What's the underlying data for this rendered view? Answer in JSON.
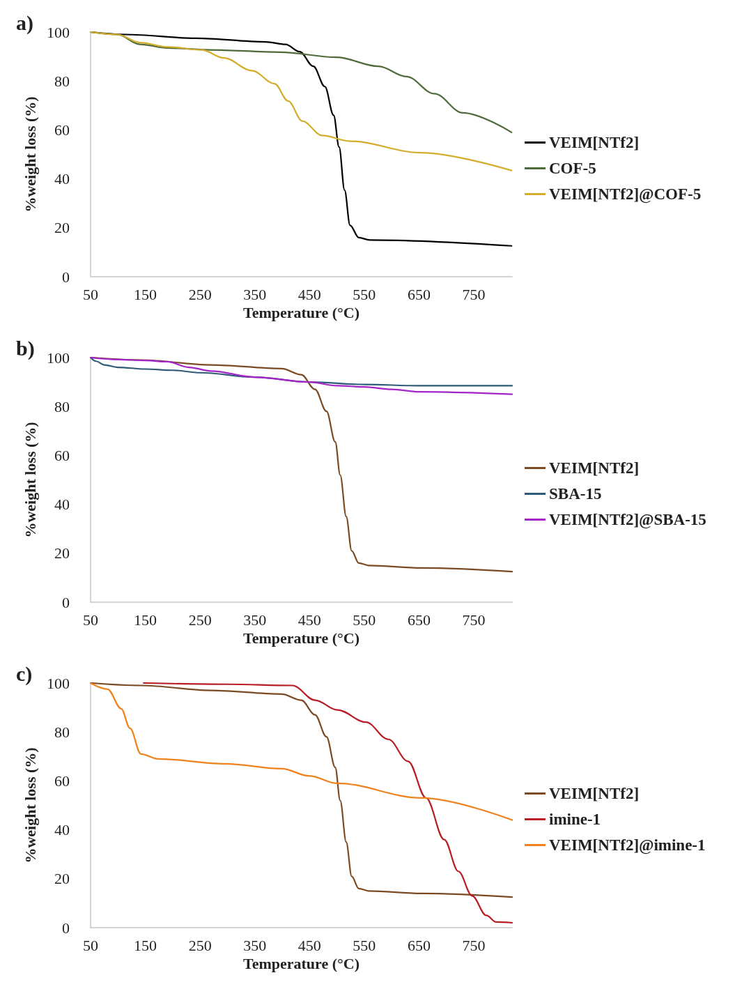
{
  "chart_data": [
    {
      "type": "line",
      "title": "a)",
      "xlabel": "Temperature (°C)",
      "ylabel": "%weight loss (%)",
      "xlim": [
        50,
        820
      ],
      "xticks": [
        50,
        150,
        250,
        350,
        450,
        550,
        650,
        750
      ],
      "ylim": [
        0,
        100
      ],
      "yticks": [
        0,
        20,
        40,
        60,
        80,
        100
      ],
      "legend": "right",
      "series": [
        {
          "name": "VEIM[NTf2]",
          "color": "#000000",
          "x": [
            50,
            114,
            242,
            370,
            406,
            432,
            457,
            478,
            494,
            504,
            514,
            524,
            540,
            560,
            819
          ],
          "values": [
            100,
            99,
            97.5,
            96,
            95,
            92,
            86,
            77.7,
            66,
            53,
            35.4,
            21,
            16,
            15,
            12.6
          ]
        },
        {
          "name": "COF-5",
          "color": "#4f6b3a",
          "x": [
            50,
            99,
            140,
            191,
            268,
            396,
            499,
            576,
            627,
            678,
            730,
            819
          ],
          "values": [
            100,
            99,
            95,
            93.5,
            92.7,
            91.8,
            89.7,
            86,
            81.8,
            74.8,
            67,
            59
          ]
        },
        {
          "name": "VEIM[NTf2]@COF-5",
          "color": "#d4ac2b",
          "x": [
            50,
            99,
            140,
            191,
            253,
            294,
            345,
            386,
            411,
            437,
            473,
            524,
            653,
            819
          ],
          "values": [
            100,
            99,
            95.7,
            93.9,
            92.7,
            89.4,
            84.2,
            78.9,
            71.8,
            63.6,
            57.7,
            55.4,
            50.7,
            43.4
          ]
        }
      ]
    },
    {
      "type": "line",
      "title": "b)",
      "xlabel": "Temperature (°C)",
      "ylabel": "%weight loss (%)",
      "xlim": [
        50,
        820
      ],
      "xticks": [
        50,
        150,
        250,
        350,
        450,
        550,
        650,
        750
      ],
      "ylim": [
        0,
        100
      ],
      "yticks": [
        0,
        20,
        40,
        60,
        80,
        100
      ],
      "legend": "right",
      "series": [
        {
          "name": "VEIM[NTf2]",
          "color": "#7b4a22",
          "x": [
            50,
            142,
            270,
            399,
            435,
            460,
            481,
            497,
            506,
            517,
            527,
            540,
            558,
            655,
            820
          ],
          "values": [
            100,
            99,
            97,
            95.5,
            93,
            87,
            78,
            65.5,
            52,
            35,
            21,
            16,
            15,
            14,
            12.5
          ]
        },
        {
          "name": "SBA-15",
          "color": "#2e5b78",
          "x": [
            50,
            60,
            75,
            100,
            150,
            200,
            250,
            350,
            450,
            550,
            650,
            820
          ],
          "values": [
            100,
            98.5,
            97,
            96,
            95.3,
            94.8,
            93.8,
            92,
            90,
            89,
            88.5,
            88.5
          ]
        },
        {
          "name": "VEIM[NTf2]@SBA-15",
          "color": "#a424c8",
          "x": [
            50,
            100,
            150,
            190,
            230,
            270,
            350,
            450,
            500,
            550,
            600,
            650,
            820
          ],
          "values": [
            100,
            99.2,
            98.8,
            98.3,
            96,
            94.5,
            92,
            90,
            88.5,
            88,
            87,
            86,
            85
          ]
        }
      ]
    },
    {
      "type": "line",
      "title": "c)",
      "xlabel": "Temperature (°C)",
      "ylabel": "%weight loss (%)",
      "xlim": [
        50,
        820
      ],
      "xticks": [
        50,
        150,
        250,
        350,
        450,
        550,
        650,
        750
      ],
      "ylim": [
        0,
        100
      ],
      "yticks": [
        0,
        20,
        40,
        60,
        80,
        100
      ],
      "legend": "right",
      "series": [
        {
          "name": "VEIM[NTf2]",
          "color": "#7b4a22",
          "x": [
            50,
            142,
            270,
            399,
            435,
            460,
            481,
            497,
            506,
            517,
            527,
            540,
            558,
            655,
            820
          ],
          "values": [
            100,
            99,
            97,
            95.5,
            93,
            87,
            78,
            65.5,
            52,
            35,
            21,
            16,
            15,
            14,
            12.5
          ]
        },
        {
          "name": "imine-1",
          "color": "#b81c24",
          "x": [
            147,
            300,
            419,
            460,
            501,
            553,
            594,
            630,
            663,
            696,
            722,
            747,
            773,
            791,
            820
          ],
          "values": [
            100,
            99.5,
            99,
            93,
            89,
            84,
            77,
            68,
            53,
            36,
            23,
            13,
            5,
            2.3,
            2
          ]
        },
        {
          "name": "VEIM[NTf2]@imine-1",
          "color": "#f0821e",
          "x": [
            50,
            81,
            106,
            122,
            142,
            173,
            296,
            399,
            450,
            501,
            655,
            820
          ],
          "values": [
            100,
            97.5,
            89.5,
            81.5,
            71,
            69,
            67,
            65,
            62,
            59,
            53,
            44
          ]
        }
      ]
    }
  ]
}
